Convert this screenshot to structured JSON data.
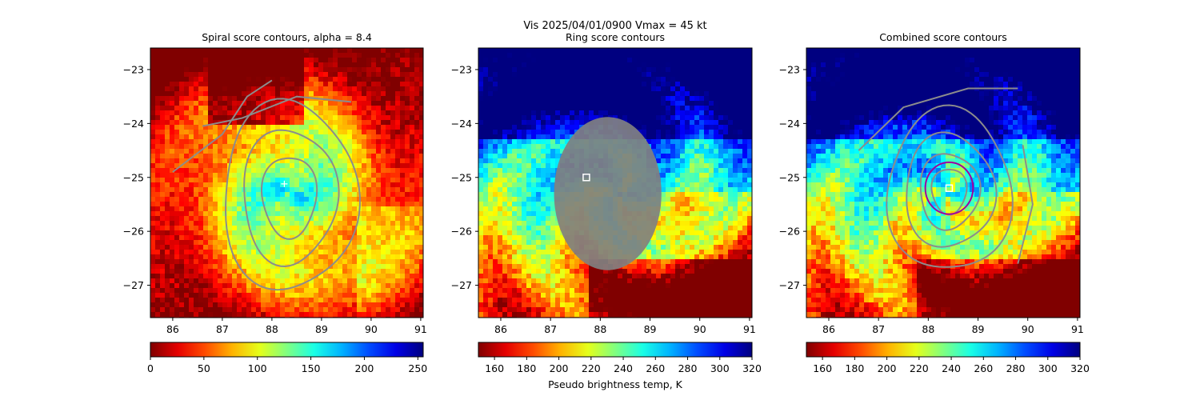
{
  "figure": {
    "suptitle": "Vis  2025/04/01/0900    Vmax = 45 kt",
    "colorbar_label": "Pseudo brightness temp, K"
  },
  "chart_data": [
    {
      "type": "heatmap",
      "title": "Spiral score contours, alpha =  8.4",
      "xlim": [
        85.55,
        91.05
      ],
      "ylim": [
        -27.6,
        -22.6
      ],
      "xticks": [
        86,
        87,
        88,
        89,
        90,
        91
      ],
      "yticks": [
        -23,
        -24,
        -25,
        -26,
        -27
      ],
      "xticklabels": [
        "86",
        "87",
        "88",
        "89",
        "90",
        "91"
      ],
      "yticklabels": [
        "−23",
        "−24",
        "−25",
        "−26",
        "−27"
      ],
      "colormap": "jet_r",
      "colorbar": {
        "range": [
          0,
          255
        ],
        "ticks": [
          0,
          50,
          100,
          150,
          200,
          250
        ],
        "ticklabels": [
          "0",
          "50",
          "100",
          "150",
          "200",
          "250"
        ]
      },
      "contour_color": "#8c8c8c",
      "center_marker": {
        "x": 88.25,
        "y": -25.12,
        "symbol": "+",
        "color": "#ffffff"
      }
    },
    {
      "type": "heatmap",
      "title": "Ring score contours",
      "xlim": [
        85.55,
        91.05
      ],
      "ylim": [
        -27.6,
        -22.6
      ],
      "xticks": [
        86,
        87,
        88,
        89,
        90,
        91
      ],
      "yticks": [
        -23,
        -24,
        -25,
        -26,
        -27
      ],
      "xticklabels": [
        "86",
        "87",
        "88",
        "89",
        "90",
        "91"
      ],
      "yticklabels": [
        "−23",
        "−24",
        "−25",
        "−26",
        "−27"
      ],
      "colormap": "jet_r",
      "colorbar": {
        "range": [
          150,
          320
        ],
        "ticks": [
          160,
          180,
          200,
          220,
          240,
          260,
          280,
          300,
          320
        ],
        "ticklabels": [
          "160",
          "180",
          "200",
          "220",
          "240",
          "260",
          "280",
          "300",
          "320"
        ]
      },
      "ring_region": {
        "center": [
          88.15,
          -25.3
        ],
        "rx_deg": 1.08,
        "ry_deg": 1.42,
        "color": "#808080"
      },
      "center_marker": {
        "x": 87.72,
        "y": -25.0,
        "symbol": "square",
        "color": "#ffffff"
      }
    },
    {
      "type": "heatmap",
      "title": "Combined score contours",
      "xlim": [
        85.55,
        91.05
      ],
      "ylim": [
        -27.6,
        -22.6
      ],
      "xticks": [
        86,
        87,
        88,
        89,
        90,
        91
      ],
      "yticks": [
        -23,
        -24,
        -25,
        -26,
        -27
      ],
      "xticklabels": [
        "86",
        "87",
        "88",
        "89",
        "90",
        "91"
      ],
      "yticklabels": [
        "−23",
        "−24",
        "−25",
        "−26",
        "−27"
      ],
      "colormap": "jet_r",
      "colorbar": {
        "range": [
          150,
          320
        ],
        "ticks": [
          160,
          180,
          200,
          220,
          240,
          260,
          280,
          300,
          320
        ],
        "ticklabels": [
          "160",
          "180",
          "200",
          "220",
          "240",
          "260",
          "280",
          "300",
          "320"
        ]
      },
      "contour_color": "#8c8c8c",
      "circle": {
        "center": [
          88.42,
          -25.2
        ],
        "radius_deg": 0.48,
        "color": "#a000a0"
      },
      "center_marker": {
        "x": 88.42,
        "y": -25.2,
        "symbol": "square",
        "color": "#ffffff"
      }
    }
  ]
}
